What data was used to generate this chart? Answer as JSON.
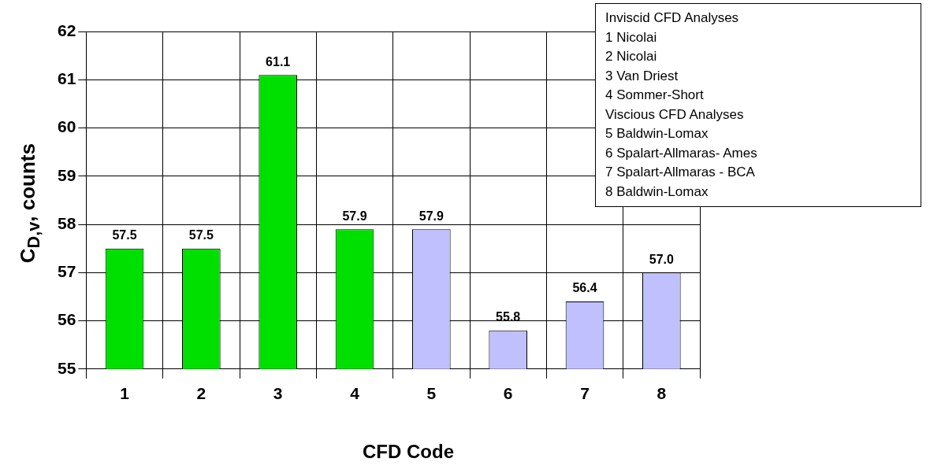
{
  "chart_data": {
    "type": "bar",
    "xlabel": "CFD Code",
    "ylabel": "C$_{D,v}$, counts",
    "categories": [
      "1",
      "2",
      "3",
      "4",
      "5",
      "6",
      "7",
      "8"
    ],
    "values": [
      57.5,
      57.5,
      61.1,
      57.9,
      57.9,
      55.8,
      56.4,
      57.0
    ],
    "value_labels": [
      "57.5",
      "57.5",
      "61.1",
      "57.9",
      "57.9",
      "55.8",
      "56.4",
      "57.0"
    ],
    "colors": [
      "#00e000",
      "#00e000",
      "#00e000",
      "#00e000",
      "#c0c0ff",
      "#c0c0ff",
      "#c0c0ff",
      "#c0c0ff"
    ],
    "ylim": [
      55,
      62
    ],
    "yticks": [
      55,
      56,
      57,
      58,
      59,
      60,
      61,
      62
    ],
    "grid": true,
    "annotations": [
      "Inviscid CFD Analyses",
      "1 Nicolai",
      "2 Nicolai",
      "3 Van Driest",
      "4 Sommer-Short",
      "Viscious CFD Analyses",
      "5 Baldwin-Lomax",
      "6 Spalart-Allmaras- Ames",
      "7 Spalart-Allmaras - BCA",
      "8 Baldwin-Lomax"
    ]
  }
}
